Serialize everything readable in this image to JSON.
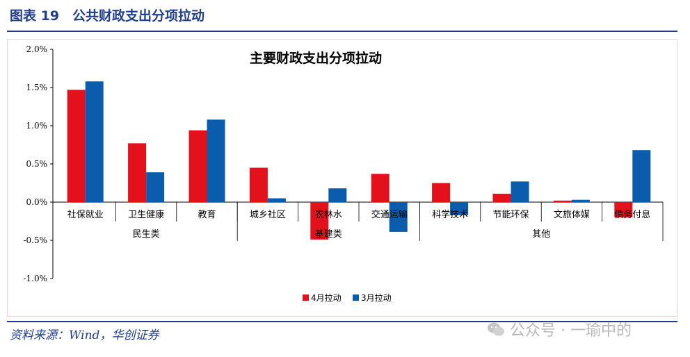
{
  "figure_title": "图表 19　公共财政支出分项拉动",
  "source": "资料来源：Wind，华创证券",
  "watermark": "公众号 · 一瑜中的",
  "colors": {
    "series_apr": "#e3111c",
    "series_mar": "#0b5cad",
    "brand": "#1f3d8a"
  },
  "chart_data": {
    "type": "bar",
    "title": "主要财政支出分项拉动",
    "categories": [
      "社保就业",
      "卫生健康",
      "教育",
      "城乡社区",
      "农林水",
      "交通运输",
      "科学技术",
      "节能环保",
      "文旅体媒",
      "债务付息"
    ],
    "groups": [
      {
        "label": "民生类",
        "span": [
          0,
          2
        ]
      },
      {
        "label": "基建类",
        "span": [
          3,
          5
        ]
      },
      {
        "label": "其他",
        "span": [
          6,
          9
        ]
      }
    ],
    "series": [
      {
        "name": "4月拉动",
        "values": [
          1.47,
          0.77,
          0.94,
          0.45,
          -0.49,
          0.37,
          0.25,
          0.11,
          0.02,
          -0.2
        ]
      },
      {
        "name": "3月拉动",
        "values": [
          1.58,
          0.39,
          1.08,
          0.05,
          0.18,
          -0.39,
          -0.17,
          0.27,
          0.03,
          0.68
        ]
      }
    ],
    "ylim": [
      -1.0,
      2.0
    ],
    "yticks": [
      "2.0%",
      "1.5%",
      "1.0%",
      "0.5%",
      "0.0%",
      "-0.5%",
      "-1.0%"
    ],
    "ytick_values": [
      2.0,
      1.5,
      1.0,
      0.5,
      0.0,
      -0.5,
      -1.0
    ],
    "legend_position": "bottom-center",
    "grid": false
  }
}
